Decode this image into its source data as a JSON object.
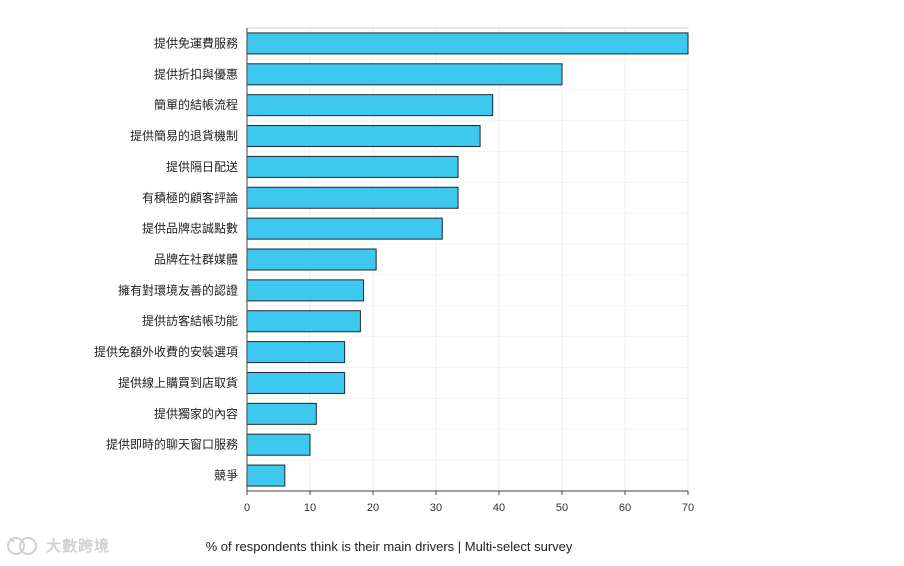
{
  "chart_data": {
    "type": "bar",
    "orientation": "horizontal",
    "categories": [
      "提供免運費服務",
      "提供折扣與優惠",
      "簡單的結帳流程",
      "提供簡易的退貨機制",
      "提供隔日配送",
      "有積極的顧客評論",
      "提供品牌忠誠點數",
      "品牌在社群媒體",
      "擁有對環境友善的認證",
      "提供訪客結帳功能",
      "提供免額外收費的安裝選項",
      "提供線上購買到店取貨",
      "提供獨家的內容",
      "提供即時的聊天窗口服務",
      "競爭"
    ],
    "values": [
      70,
      50,
      39,
      37,
      33.5,
      33.5,
      31,
      20.5,
      18.5,
      18,
      15.5,
      15.5,
      11,
      10,
      6
    ],
    "xlim": [
      0,
      70
    ],
    "xticks": [
      0,
      10,
      20,
      30,
      40,
      50,
      60,
      70
    ],
    "xlabel": "% of respondents think is their main drivers | Multi-select survey",
    "bar_color": "#3cc8ef",
    "bar_stroke": "#1a2a33",
    "grid_color": "#eeeeee"
  },
  "watermark": {
    "text": "大數跨境",
    "icon": "logo-mark-icon"
  }
}
